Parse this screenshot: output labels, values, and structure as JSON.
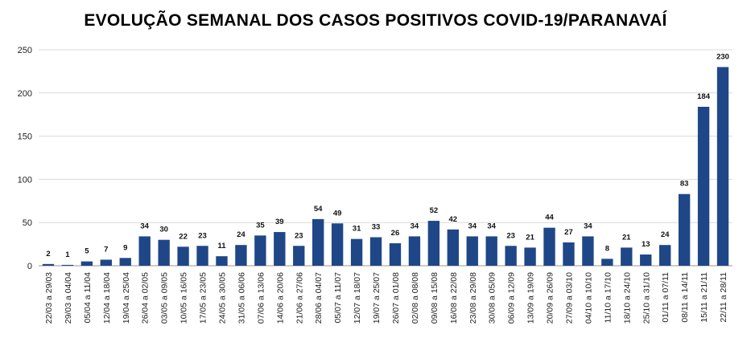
{
  "chart_data": {
    "type": "bar",
    "title": "EVOLUÇÃO SEMANAL DOS CASOS POSITIVOS COVID-19/PARANAVAÍ",
    "xlabel": "",
    "ylabel": "",
    "ylim": [
      0,
      250
    ],
    "yticks": [
      0,
      50,
      100,
      150,
      200,
      250
    ],
    "grid": true,
    "legend": "none",
    "bar_color": "#1f4788",
    "categories": [
      "22/03 a 29/03",
      "29/03 a 04/04",
      "05/04 a 11/04",
      "12/04 a 18/04",
      "19/04 a 25/04",
      "26/04 a 02/05",
      "03/05 a 09/05",
      "10/05 a 16/05",
      "17/05 a 23/05",
      "24/05 a 30/05",
      "31/05 a 06/06",
      "07/06 a 13/06",
      "14/06 a 20/06",
      "21/06 a 27/06",
      "28/06 a 04/07",
      "05/07 a 11/07",
      "12/07 a 18/07",
      "19/07 a 25/07",
      "26/07 a 01/08",
      "02/08 a 08/08",
      "09/08 a 15/08",
      "16/08 a 22/08",
      "23/08 a 29/08",
      "30/08 a 05/09",
      "06/09 a 12/09",
      "13/09 a 19/09",
      "20/09 a 26/09",
      "27/09 a 03/10",
      "04/10 a 10/10",
      "11/10 a 17/10",
      "18/10 a 24/10",
      "25/10 a 31/10",
      "01/11 a 07/11",
      "08/11 a 14/11",
      "15/11 a 21/11",
      "22/11 a 28/11"
    ],
    "values": [
      2,
      1,
      5,
      7,
      9,
      34,
      30,
      22,
      23,
      11,
      24,
      35,
      39,
      23,
      54,
      49,
      31,
      33,
      26,
      34,
      52,
      42,
      34,
      34,
      23,
      21,
      44,
      27,
      34,
      8,
      21,
      13,
      24,
      83,
      184,
      230
    ]
  }
}
